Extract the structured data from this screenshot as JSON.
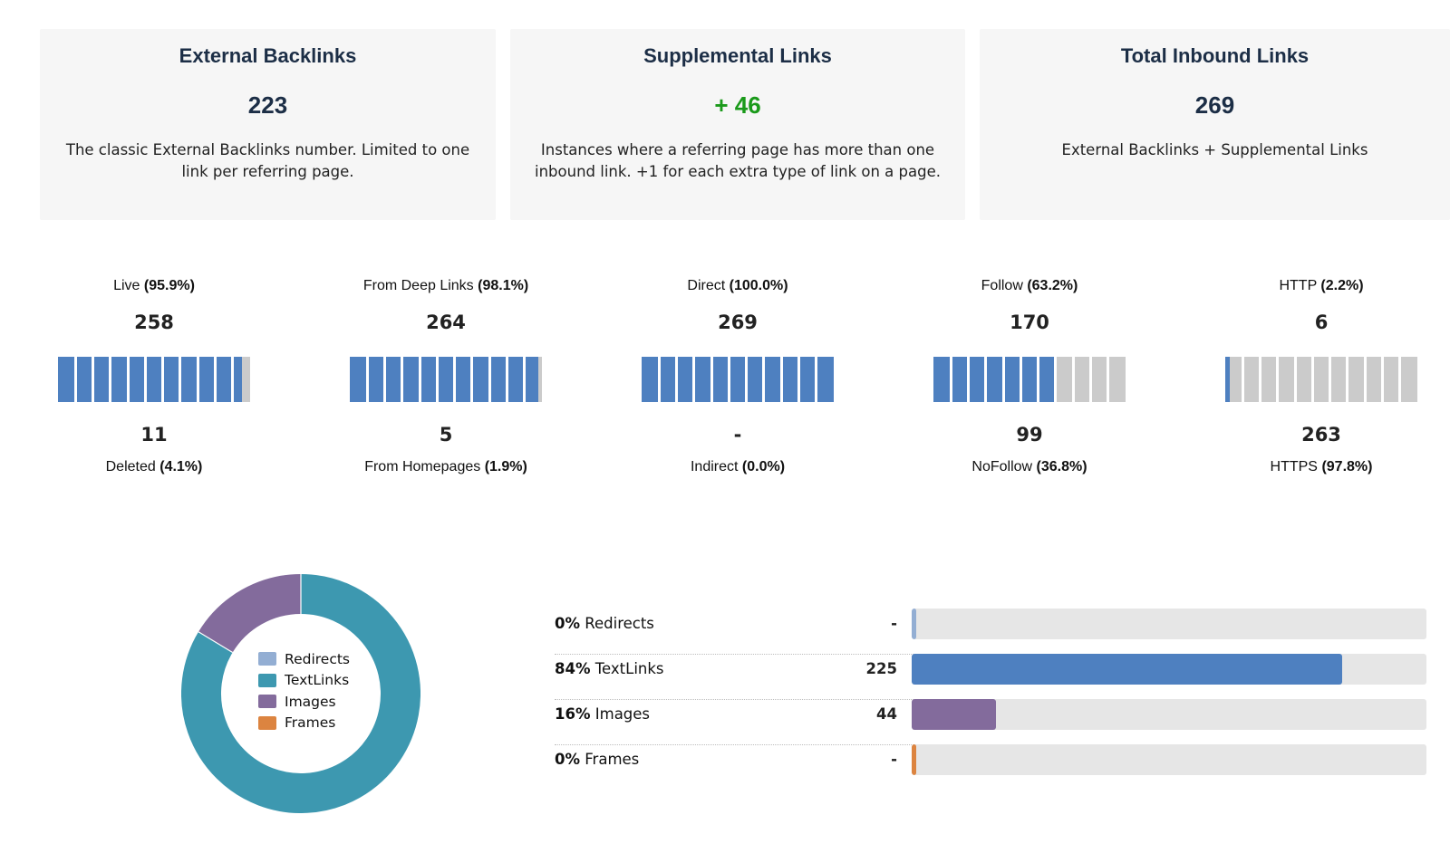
{
  "cards": [
    {
      "title": "External Backlinks",
      "value": "223",
      "description": "The classic External Backlinks number. Limited to one link per referring page."
    },
    {
      "title": "Supplemental Links",
      "value": "+ 46",
      "description": "Instances where a referring page has more than one inbound link. +1 for each extra type of link on a page."
    },
    {
      "title": "Total Inbound Links",
      "value": "269",
      "description": "External Backlinks + Supplemental Links"
    }
  ],
  "gauges": [
    {
      "top_label": "Live",
      "top_pct": "(95.9%)",
      "top_count": "258",
      "bottom_count": "11",
      "bottom_label": "Deleted",
      "bottom_pct": "(4.1%)",
      "fill_fraction": 0.959
    },
    {
      "top_label": "From Deep Links",
      "top_pct": "(98.1%)",
      "top_count": "264",
      "bottom_count": "5",
      "bottom_label": "From Homepages",
      "bottom_pct": "(1.9%)",
      "fill_fraction": 0.981
    },
    {
      "top_label": "Direct",
      "top_pct": "(100.0%)",
      "top_count": "269",
      "bottom_count": "-",
      "bottom_label": "Indirect",
      "bottom_pct": "(0.0%)",
      "fill_fraction": 1.0
    },
    {
      "top_label": "Follow",
      "top_pct": "(63.2%)",
      "top_count": "170",
      "bottom_count": "99",
      "bottom_label": "NoFollow",
      "bottom_pct": "(36.8%)",
      "fill_fraction": 0.632
    },
    {
      "top_label": "HTTP",
      "top_pct": "(2.2%)",
      "top_count": "6",
      "bottom_count": "263",
      "bottom_label": "HTTPS",
      "bottom_pct": "(97.8%)",
      "fill_fraction": 0.022
    }
  ],
  "colors": {
    "gauge_fill": "#4e80c0",
    "gauge_empty": "#cbcbcb",
    "card_bg": "#f6f6f6",
    "title_text": "#1c2e46",
    "positive": "#1a9a1a"
  },
  "chart_data": [
    {
      "type": "pie",
      "variant": "donut",
      "legend_position": "center",
      "slices": [
        {
          "label": "Redirects",
          "value": 0,
          "color": "#93aed3"
        },
        {
          "label": "TextLinks",
          "value": 225,
          "color": "#3d98b0"
        },
        {
          "label": "Images",
          "value": 44,
          "color": "#836b9c"
        },
        {
          "label": "Frames",
          "value": 0,
          "color": "#dc8440"
        }
      ]
    },
    {
      "type": "bar",
      "orientation": "horizontal",
      "xlim": [
        0,
        269
      ],
      "rows": [
        {
          "pct": "0%",
          "label": "Redirects",
          "count": "-",
          "value": 0,
          "color": "#93aed3"
        },
        {
          "pct": "84%",
          "label": "TextLinks",
          "count": "225",
          "value": 225,
          "color": "#4e80c0"
        },
        {
          "pct": "16%",
          "label": "Images",
          "count": "44",
          "value": 44,
          "color": "#836b9c"
        },
        {
          "pct": "0%",
          "label": "Frames",
          "count": "-",
          "value": 0,
          "color": "#dc8440"
        }
      ]
    }
  ]
}
